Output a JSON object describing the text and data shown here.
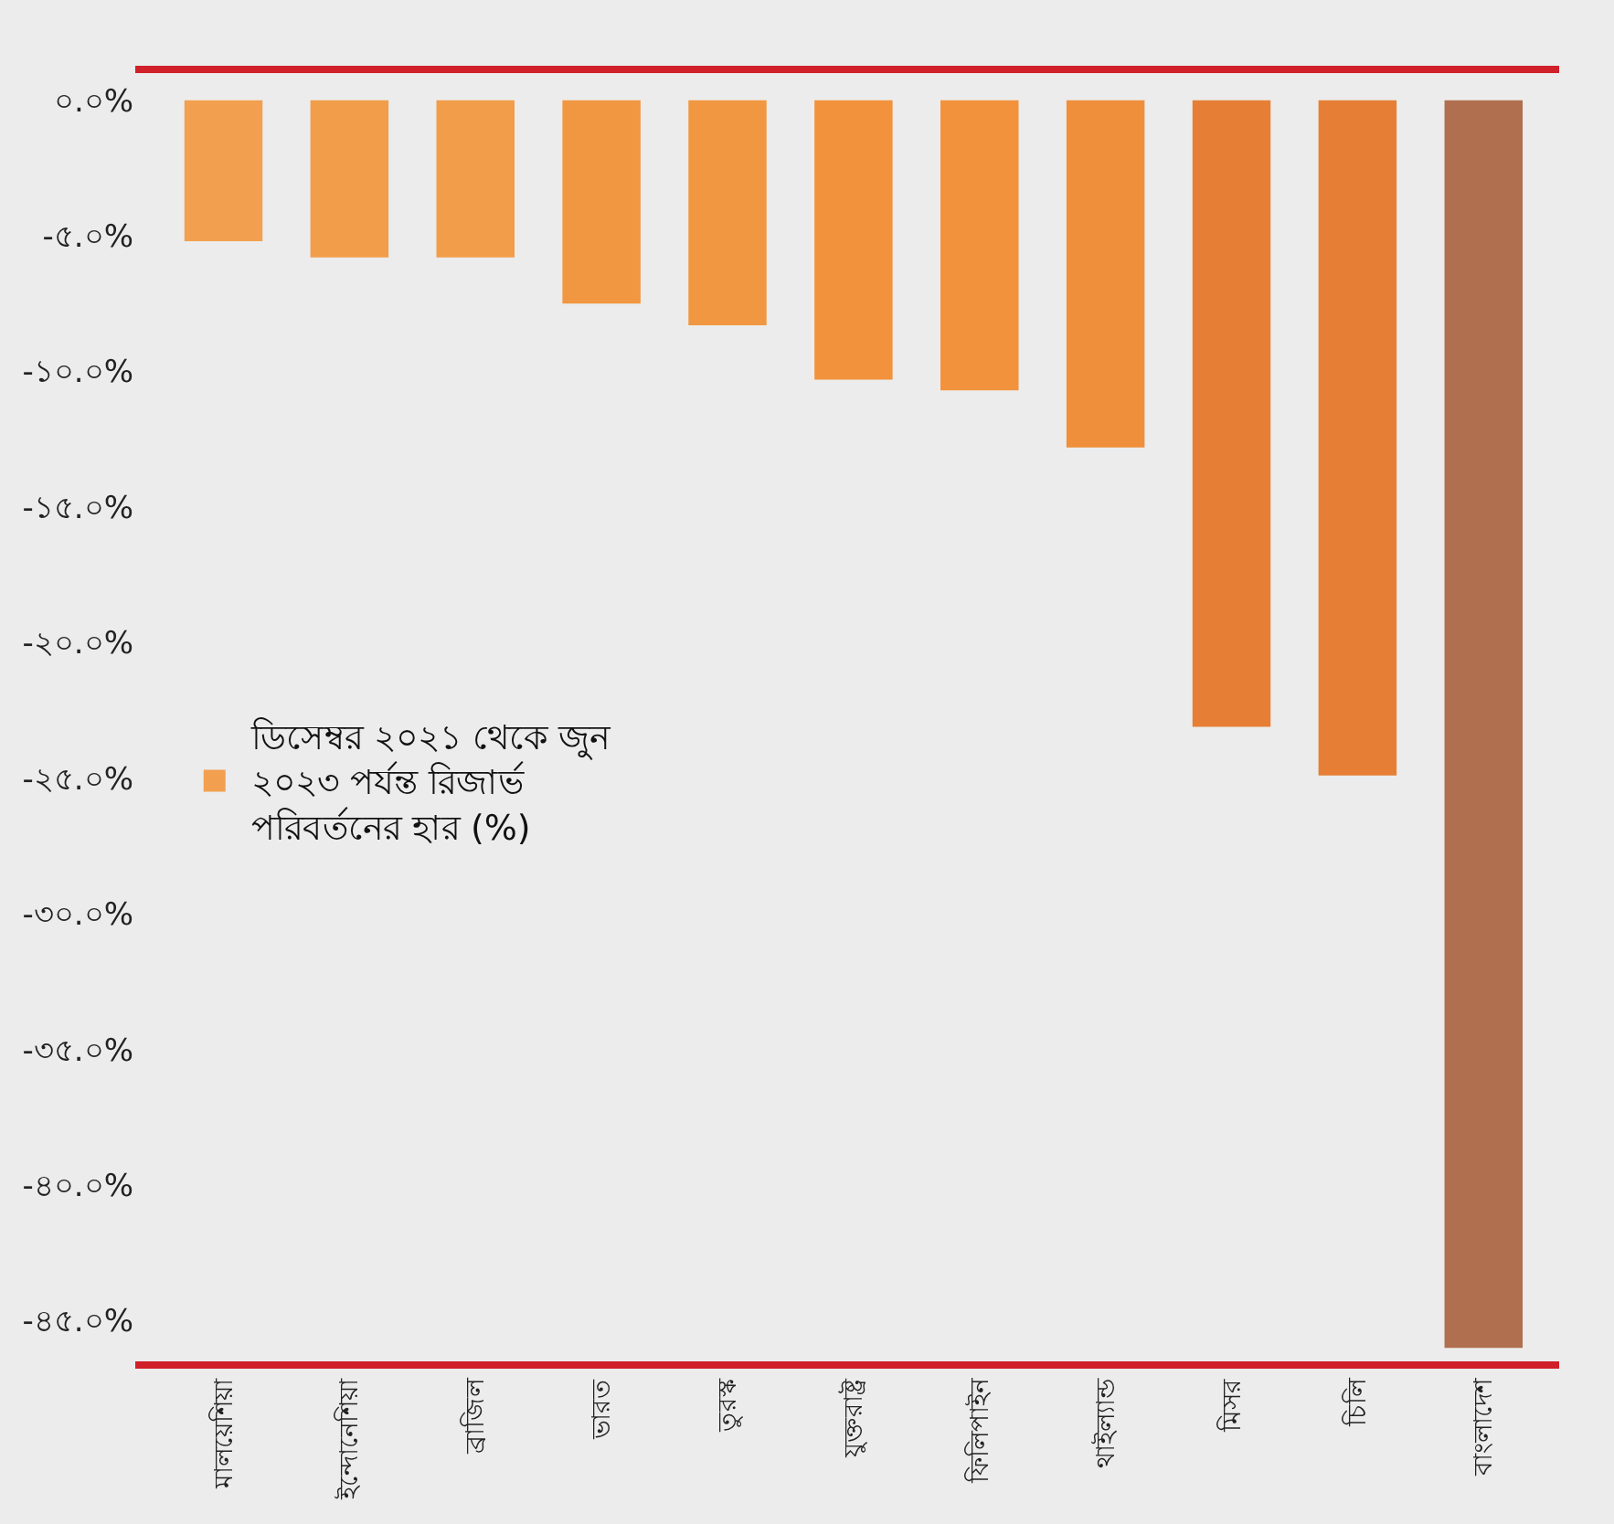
{
  "chart_data": {
    "type": "bar",
    "categories": [
      "মালয়েশিয়া",
      "ইন্দোনেশিয়া",
      "ব্রাজিল",
      "ভারত",
      "তুরস্ক",
      "যুক্তরাষ্ট্র",
      "ফিলিপাইন",
      "থাইল্যান্ড",
      "মিসর",
      "চিলি",
      "বাংলাদেশ"
    ],
    "series": [
      {
        "name": "ডিসেম্বর ২০২১ থেকে জুন ২০২৩ পর্যন্ত রিজার্ভ পরিবর্তনের হার (%)",
        "values": [
          -5.2,
          -5.8,
          -5.8,
          -7.5,
          -8.3,
          -10.3,
          -10.7,
          -12.8,
          -23.1,
          -24.9,
          -46.0
        ],
        "colors": [
          "#f2a050",
          "#f29d4a",
          "#f29d4a",
          "#f29741",
          "#f29741",
          "#f2923d",
          "#f2923d",
          "#f08f3b",
          "#e67f35",
          "#e67f35",
          "#b06f4f"
        ]
      }
    ],
    "ylim": [
      -46.5,
      1
    ],
    "yticks": [
      {
        "value": 0,
        "label": "০.০%"
      },
      {
        "value": -5,
        "label": "-৫.০%"
      },
      {
        "value": -10,
        "label": "-১০.০%"
      },
      {
        "value": -15,
        "label": "-১৫.০%"
      },
      {
        "value": -20,
        "label": "-২০.০%"
      },
      {
        "value": -25,
        "label": "-২৫.০%"
      },
      {
        "value": -30,
        "label": "-৩০.০%"
      },
      {
        "value": -35,
        "label": "-৩৫.০%"
      },
      {
        "value": -40,
        "label": "-৪০.০%"
      },
      {
        "value": -45,
        "label": "-৪৫.০%"
      }
    ],
    "grid": false,
    "legend": "left"
  }
}
